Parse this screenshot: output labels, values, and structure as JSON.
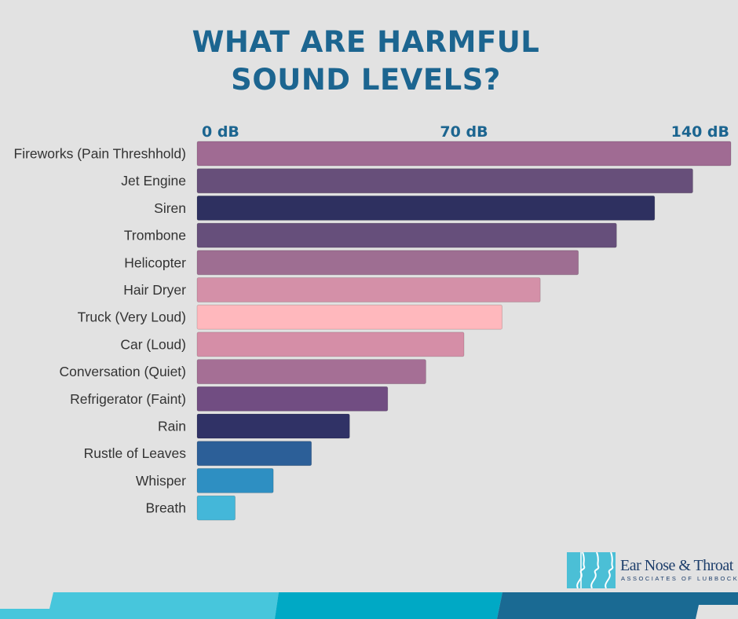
{
  "title_lines": [
    "WHAT ARE HARMFUL",
    "SOUND LEVELS?"
  ],
  "chart_data": {
    "type": "bar",
    "orientation": "horizontal",
    "title": "WHAT ARE HARMFUL SOUND LEVELS?",
    "xlim": [
      0,
      140
    ],
    "x_unit": "dB",
    "tick_labels": [
      {
        "value": 0,
        "label": "0 dB"
      },
      {
        "value": 70,
        "label": "70 dB"
      },
      {
        "value": 140,
        "label": "140 dB"
      }
    ],
    "categories": [
      "Fireworks (Pain Threshhold)",
      "Jet Engine",
      "Siren",
      "Trombone",
      "Helicopter",
      "Hair Dryer",
      "Truck (Very Loud)",
      "Car (Loud)",
      "Conversation (Quiet)",
      "Refrigerator (Faint)",
      "Rain",
      "Rustle of Leaves",
      "Whisper",
      "Breath"
    ],
    "values": [
      140,
      130,
      120,
      110,
      100,
      90,
      80,
      70,
      60,
      50,
      40,
      30,
      20,
      10
    ],
    "colors": [
      "#a06b93",
      "#674f7a",
      "#2e3060",
      "#664f7b",
      "#9e6e92",
      "#d490a8",
      "#ffb8bd",
      "#d58ea7",
      "#a56f95",
      "#714d82",
      "#303266",
      "#2c5f98",
      "#2e8fc2",
      "#44b7d9"
    ],
    "grid": false,
    "legend": "none"
  },
  "logo": {
    "name": "Ear Nose & Throat",
    "subtitle": "ASSOCIATES OF LUBBOCK"
  },
  "colors": {
    "background": "#e2e2e2",
    "title": "#1c6590",
    "tick_text": "#1c6590",
    "category_text": "#333333",
    "band_light": "#47c6dc",
    "band_mid": "#00a9c5",
    "band_dark": "#1a6a93"
  }
}
